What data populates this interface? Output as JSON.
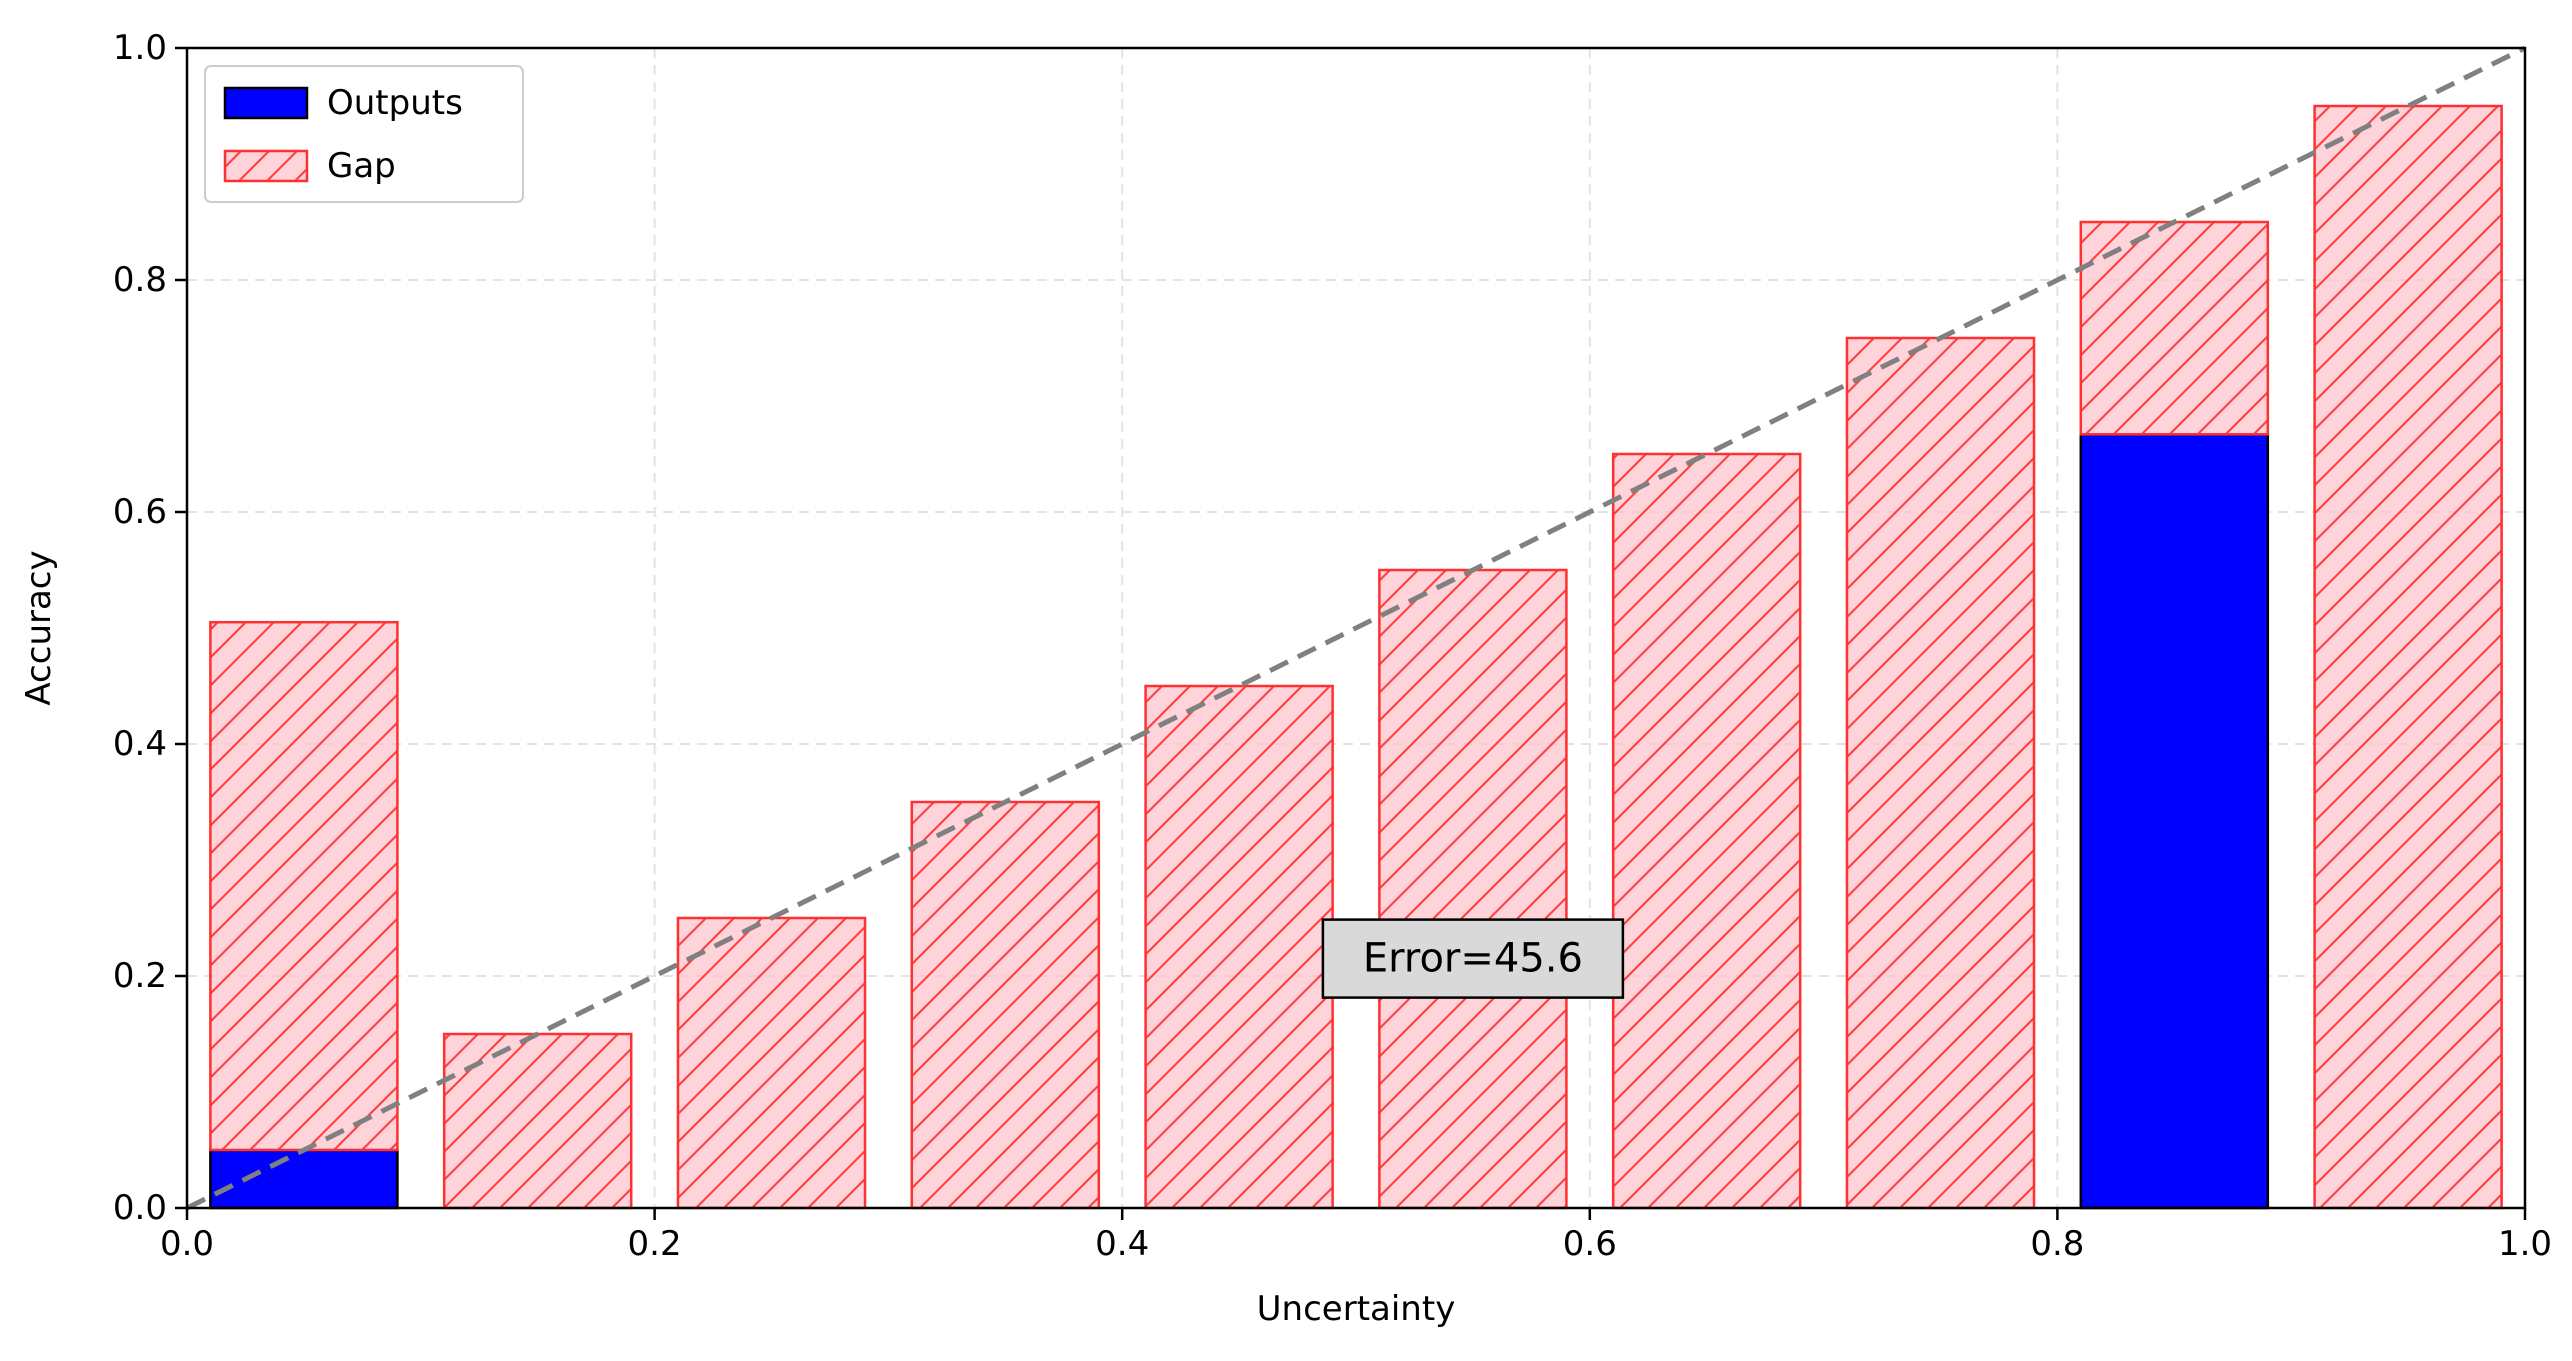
{
  "chart_data": {
    "type": "bar",
    "xlabel": "Uncertainty",
    "ylabel": "Accuracy",
    "xlim": [
      0.0,
      1.0
    ],
    "ylim": [
      0.0,
      1.0
    ],
    "xticks": [
      "0.0",
      "0.2",
      "0.4",
      "0.6",
      "0.8",
      "1.0"
    ],
    "yticks": [
      "0.0",
      "0.2",
      "0.4",
      "0.6",
      "0.8",
      "1.0"
    ],
    "grid": true,
    "legend_position": "top-left",
    "bin_centers": [
      0.05,
      0.15,
      0.25,
      0.35,
      0.45,
      0.55,
      0.65,
      0.75,
      0.85,
      0.95
    ],
    "bar_width": 0.08,
    "series": [
      {
        "name": "Outputs",
        "color": "#0000ff",
        "values": [
          0.05,
          0.0,
          0.0,
          0.0,
          0.0,
          0.0,
          0.0,
          0.0,
          0.667,
          0.0
        ]
      },
      {
        "name": "Gap",
        "color": "#ff0000",
        "fill": "#ffc0cb",
        "hatch": "diagonal",
        "values": [
          0.505,
          0.15,
          0.25,
          0.35,
          0.45,
          0.55,
          0.65,
          0.75,
          0.85,
          0.95
        ]
      }
    ],
    "reference_line": {
      "style": "dashed",
      "color": "#808080",
      "from": [
        0,
        0
      ],
      "to": [
        1,
        1
      ]
    },
    "annotation": {
      "text": "Error=45.6",
      "x": 0.55,
      "y": 0.215
    }
  }
}
